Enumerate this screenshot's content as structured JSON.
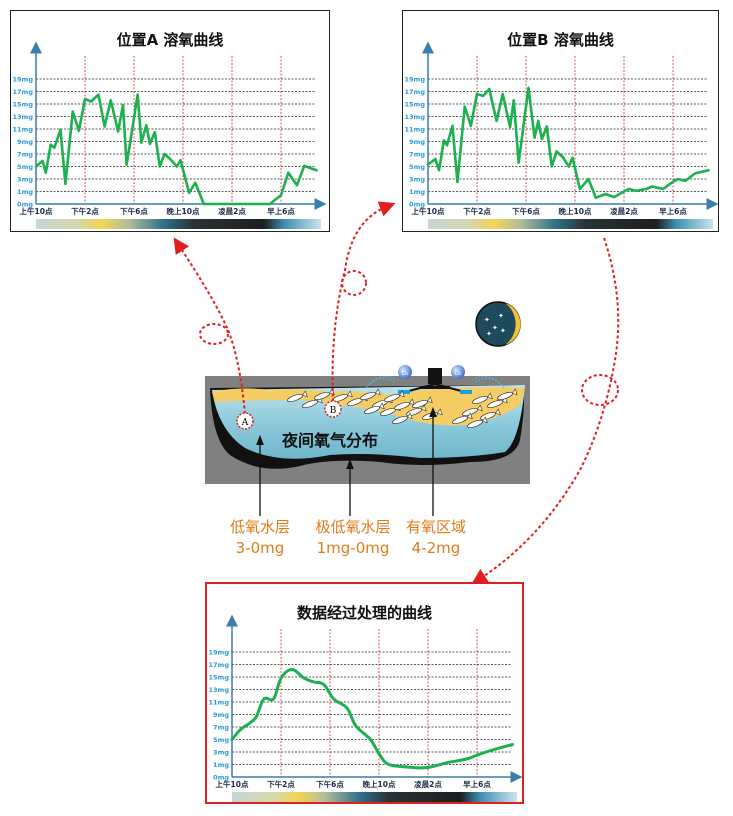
{
  "charts": [
    {
      "id": "a",
      "title": "位置A 溶氧曲线",
      "y_ticks": [
        "19mg",
        "17mg",
        "15mg",
        "13mg",
        "11mg",
        "9mg",
        "7mg",
        "5mg",
        "3mg",
        "1mg",
        "0mg"
      ],
      "x_ticks": [
        "上午10点",
        "下午2点",
        "下午6点",
        "晚上10点",
        "凌晨2点",
        "早上6点"
      ],
      "line_color": "#1db04f",
      "smooth": false,
      "points": [
        [
          "10:00",
          5
        ],
        [
          "10:32",
          5.9
        ],
        [
          "10:48",
          4
        ],
        [
          "11:12",
          8.5
        ],
        [
          "11:30",
          8
        ],
        [
          "12:00",
          10.9
        ],
        [
          "12:24",
          2.2
        ],
        [
          "13:00",
          13.8
        ],
        [
          "13:30",
          10.7
        ],
        [
          "14:00",
          15.8
        ],
        [
          "14:30",
          15.4
        ],
        [
          "15:06",
          16.5
        ],
        [
          "15:36",
          11.4
        ],
        [
          "16:06",
          15.6
        ],
        [
          "16:42",
          10.6
        ],
        [
          "17:06",
          14.8
        ],
        [
          "17:24",
          5.3
        ],
        [
          "18:18",
          16.5
        ],
        [
          "18:36",
          8.8
        ],
        [
          "19:00",
          11.6
        ],
        [
          "19:18",
          8.6
        ],
        [
          "19:42",
          10.5
        ],
        [
          "20:06",
          5
        ],
        [
          "20:30",
          7
        ],
        [
          "21:00",
          6.1
        ],
        [
          "21:30",
          5
        ],
        [
          "21:48",
          6
        ],
        [
          "22:30",
          0.9
        ],
        [
          "23:00",
          2.4
        ],
        [
          "23:42",
          0
        ],
        [
          "05:06",
          0
        ],
        [
          "05:36",
          0.4
        ],
        [
          "06:00",
          0.7
        ],
        [
          "06:36",
          4
        ],
        [
          "07:18",
          2
        ],
        [
          "07:54",
          5.1
        ],
        [
          "08:54",
          4.4
        ]
      ]
    },
    {
      "id": "b",
      "title": "位置B 溶氧曲线",
      "y_ticks": [
        "19mg",
        "17mg",
        "15mg",
        "13mg",
        "11mg",
        "9mg",
        "7mg",
        "5mg",
        "3mg",
        "1mg",
        "0mg"
      ],
      "x_ticks": [
        "上午10点",
        "下午2点",
        "下午6点",
        "晚上10点",
        "凌晨2点",
        "早上6点"
      ],
      "line_color": "#1db04f",
      "smooth": false,
      "points": [
        [
          "10:00",
          5.3
        ],
        [
          "10:36",
          6.2
        ],
        [
          "10:54",
          4.4
        ],
        [
          "11:18",
          9.2
        ],
        [
          "11:33",
          8.4
        ],
        [
          "12:00",
          11.5
        ],
        [
          "12:24",
          2.5
        ],
        [
          "13:00",
          14.6
        ],
        [
          "13:30",
          11.5
        ],
        [
          "14:00",
          16.6
        ],
        [
          "14:30",
          16.3
        ],
        [
          "15:00",
          17.4
        ],
        [
          "15:36",
          12.3
        ],
        [
          "16:06",
          16.6
        ],
        [
          "16:42",
          11.3
        ],
        [
          "17:00",
          15.6
        ],
        [
          "17:24",
          5.6
        ],
        [
          "18:12",
          17.6
        ],
        [
          "18:42",
          9.6
        ],
        [
          "19:00",
          12.3
        ],
        [
          "19:18",
          9.4
        ],
        [
          "19:42",
          11.4
        ],
        [
          "20:06",
          5
        ],
        [
          "20:30",
          7.4
        ],
        [
          "21:00",
          6.5
        ],
        [
          "21:30",
          5
        ],
        [
          "21:48",
          6.4
        ],
        [
          "22:24",
          1.4
        ],
        [
          "23:06",
          3
        ],
        [
          "23:42",
          0.5
        ],
        [
          "00:30",
          0.8
        ],
        [
          "01:12",
          0.55
        ],
        [
          "01:54",
          0.95
        ],
        [
          "02:24",
          1.4
        ],
        [
          "03:00",
          1.1
        ],
        [
          "03:48",
          1.4
        ],
        [
          "04:18",
          1.8
        ],
        [
          "05:12",
          1.4
        ],
        [
          "05:48",
          2.3
        ],
        [
          "06:24",
          3
        ],
        [
          "07:00",
          2.7
        ],
        [
          "07:48",
          3.9
        ],
        [
          "08:54",
          4.4
        ]
      ]
    },
    {
      "id": "c",
      "title": "数据经过处理的曲线",
      "y_ticks": [
        "19mg",
        "17mg",
        "15mg",
        "13mg",
        "11mg",
        "9mg",
        "7mg",
        "5mg",
        "3mg",
        "1mg",
        "0mg"
      ],
      "x_ticks": [
        "上午10点",
        "下午2点",
        "下午6点",
        "晚上10点",
        "凌晨2点",
        "早上6点"
      ],
      "line_color": "#1db04f",
      "smooth": true,
      "points": [
        [
          "10:00",
          5
        ],
        [
          "10:42",
          6.6
        ],
        [
          "11:30",
          7.7
        ],
        [
          "12:00",
          8.7
        ],
        [
          "12:36",
          11.5
        ],
        [
          "13:24",
          11.5
        ],
        [
          "14:00",
          14.8
        ],
        [
          "14:54",
          16.2
        ],
        [
          "15:54",
          14.8
        ],
        [
          "16:42",
          14.2
        ],
        [
          "17:30",
          13.8
        ],
        [
          "18:18",
          11.5
        ],
        [
          "19:24",
          10
        ],
        [
          "20:06",
          7.2
        ],
        [
          "21:18",
          5
        ],
        [
          "22:06",
          2.4
        ],
        [
          "22:48",
          1
        ],
        [
          "00:18",
          0.8
        ],
        [
          "01:54",
          0.75
        ],
        [
          "03:36",
          1.3
        ],
        [
          "05:12",
          1.9
        ],
        [
          "06:00",
          2.5
        ],
        [
          "07:24",
          3.4
        ],
        [
          "08:54",
          4.2
        ]
      ]
    }
  ],
  "scene": {
    "title": "夜间氧气分布",
    "marker_a": "A",
    "marker_b": "B",
    "o2_label": "O₂",
    "labels": [
      {
        "name": "低氧水层",
        "range": "3-0mg"
      },
      {
        "name": "极低氧水层",
        "range": "1mg-0mg"
      },
      {
        "name": "有氧区域",
        "range": "4-2mg"
      }
    ],
    "colors": {
      "water": "#8ecbdc",
      "oxygen_zone": "#f5cd64",
      "annotation": "#e07b1a",
      "path": "#e02020"
    }
  }
}
